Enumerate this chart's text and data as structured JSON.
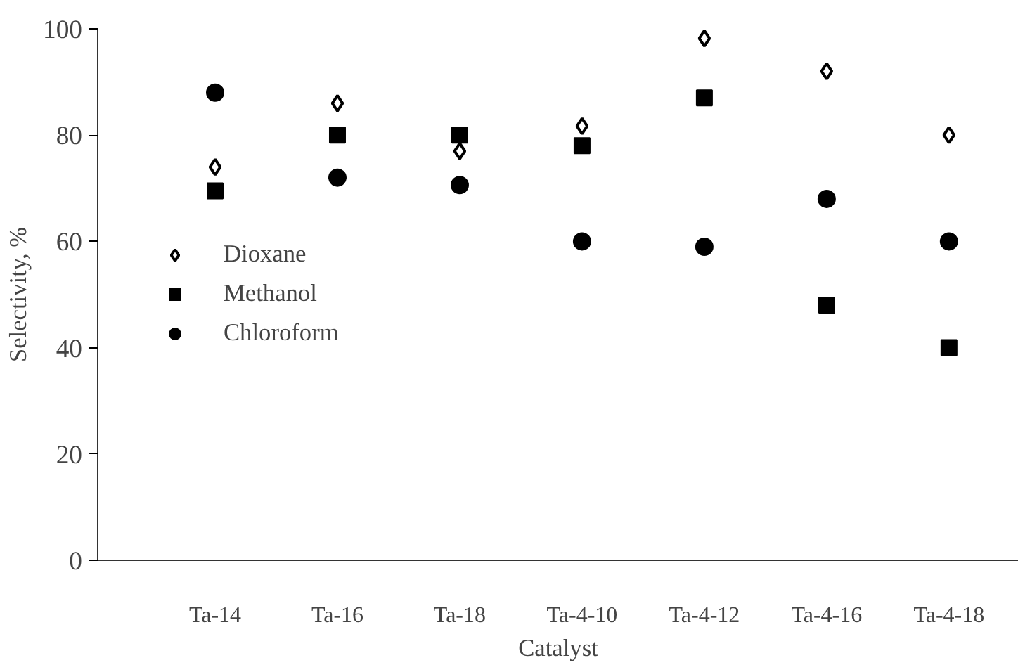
{
  "chart_data": {
    "type": "scatter",
    "xlabel": "Catalyst",
    "ylabel": "Selectivity, %",
    "categories": [
      "Ta-14",
      "Ta-16",
      "Ta-18",
      "Ta-4-10",
      "Ta-4-12",
      "Ta-4-16",
      "Ta-4-18"
    ],
    "series": [
      {
        "name": "Dioxane",
        "color": "#000000",
        "marker": "diamond",
        "values": [
          74,
          86,
          77,
          81.7,
          98.2,
          92,
          80
        ]
      },
      {
        "name": "Methanol",
        "color": "#000000",
        "marker": "square",
        "values": [
          69.5,
          80,
          80,
          78,
          87,
          48,
          40
        ]
      },
      {
        "name": "Chloroform",
        "color": "#000000",
        "marker": "circle",
        "values": [
          88,
          72,
          70.6,
          60,
          59,
          68,
          60
        ]
      }
    ],
    "ylim": [
      0,
      100
    ],
    "yticks": [
      0,
      20,
      40,
      60,
      80,
      100
    ],
    "grid": false,
    "legend": "left"
  }
}
